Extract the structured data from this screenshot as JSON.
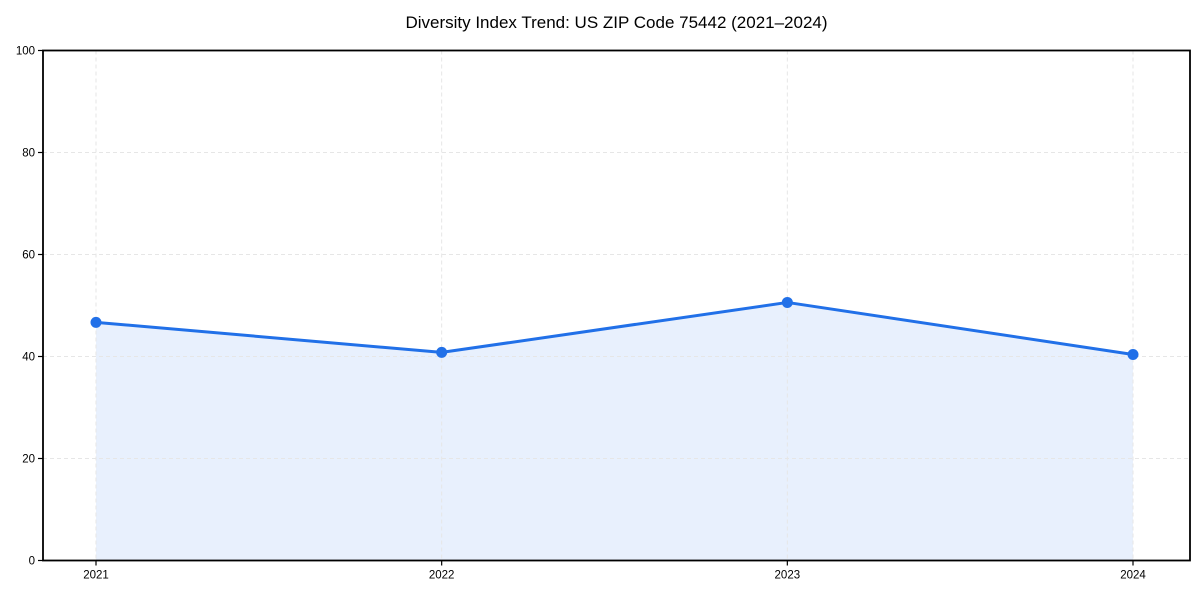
{
  "chart_data": {
    "type": "line",
    "title": "Diversity Index Trend: US ZIP Code 75442 (2021–2024)",
    "categories": [
      "2021",
      "2022",
      "2023",
      "2024"
    ],
    "series": [
      {
        "name": "Diversity Index",
        "values": [
          46.7,
          40.8,
          50.6,
          40.4
        ]
      }
    ],
    "xlabel": "",
    "ylabel": "",
    "ylim": [
      0,
      100
    ],
    "yticks": [
      0,
      20,
      40,
      60,
      80,
      100
    ],
    "grid": "dashed both directions",
    "legend": "none",
    "marker": "circle",
    "area_fill": true,
    "colors": {
      "line": "#2170e8",
      "marker": "#2170e8",
      "area": "#2170e8",
      "area_opacity": 0.1,
      "grid": "#e6e6e6",
      "spine": "#000000",
      "tick_label": "#000000",
      "title": "#000000",
      "background": "#ffffff"
    }
  }
}
